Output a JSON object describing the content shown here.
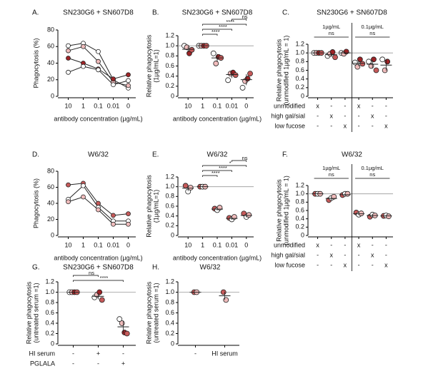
{
  "chart_data": [
    {
      "type": "line",
      "panel": "A.",
      "title": "SN230G6 + SN607D8",
      "ylabel": [
        "Phagocytosis (%)"
      ],
      "xlabel": "antibody concentration (µg/mL)",
      "categories": [
        "10",
        "1",
        "0.1",
        "0.01",
        "0"
      ],
      "ylim": [
        0,
        80
      ],
      "yticks": [
        0,
        20,
        40,
        60,
        80
      ],
      "series": [
        {
          "color": "#ffffff",
          "values": [
            61,
            64,
            54,
            20,
            10
          ]
        },
        {
          "color": "#f0bcbc",
          "values": [
            55,
            60,
            42,
            17,
            13
          ]
        },
        {
          "color": "#9e2326",
          "values": [
            46,
            40,
            33,
            21,
            26
          ]
        },
        {
          "color": "#ffffff",
          "values": [
            29,
            36,
            32,
            14,
            19
          ]
        }
      ]
    },
    {
      "type": "dot",
      "panel": "B.",
      "title": "SN230G6 + SN607D8",
      "ylabel": [
        "Relative phagocytosis",
        "(1µg/mL=1)"
      ],
      "xlabel": "antibody concentration (µg/mL)",
      "categories": [
        "10",
        "1",
        "0.1",
        "0.01",
        "0"
      ],
      "ylim": [
        0,
        1.2
      ],
      "yticks": [
        0,
        0.2,
        0.4,
        0.6,
        0.8,
        {
          "value": 1,
          "label": "1.0"
        },
        1.2
      ],
      "refline": 1,
      "donor_colors": [
        "#ffffff",
        "#f0bcbc",
        "#9e2326",
        "#c65a5a"
      ],
      "columns": [
        {
          "points": [
            1.0,
            0.97,
            0.85,
            0.92
          ],
          "mean": 0.93,
          "error": 0.06
        },
        {
          "points": [
            1,
            1,
            1,
            1
          ],
          "mean": 1,
          "error": 0
        },
        {
          "points": [
            0.85,
            0.65,
            0.78,
            0.76
          ],
          "mean": 0.76,
          "error": 0.08
        },
        {
          "points": [
            0.32,
            0.45,
            0.47,
            0.42
          ],
          "mean": 0.43,
          "error": 0.07
        },
        {
          "points": [
            0.17,
            0.3,
            0.35,
            0.45
          ],
          "mean": 0.33,
          "error": 0.11
        }
      ],
      "brackets": [
        {
          "label": "ns",
          "between": [
            3,
            4
          ]
        },
        {
          "label": "****",
          "between": [
            1,
            4
          ]
        },
        {
          "label": "****",
          "between": [
            1,
            3
          ]
        },
        {
          "label": "****",
          "between": [
            1,
            2
          ]
        }
      ]
    },
    {
      "type": "dot",
      "panel": "C.",
      "title": "SN230G6 + SN607D8",
      "ylabel": [
        "Relative phagocytosis",
        "(unmodified 1µg/mL = 1)"
      ],
      "categories": [
        null,
        null,
        null,
        null,
        null,
        null
      ],
      "ylim": [
        0,
        1.2
      ],
      "yticks": [
        0,
        0.2,
        0.4,
        0.6,
        0.8,
        {
          "value": 1,
          "label": "1.0"
        },
        1.2
      ],
      "refline": 1,
      "donor_colors": [
        "#ffffff",
        "#f0bcbc",
        "#9e2326",
        "#c65a5a"
      ],
      "columns": [
        {
          "points": [
            1,
            1,
            1,
            1
          ],
          "mean": 1,
          "error": 0
        },
        {
          "points": [
            0.93,
            0.98,
            1.02,
            0.9
          ],
          "mean": 0.96,
          "error": 0.05
        },
        {
          "points": [
            1.0,
            0.98,
            1.03,
            null
          ],
          "mean": 1,
          "error": 0.03
        },
        {
          "points": [
            0.78,
            0.68,
            0.85,
            0.75
          ],
          "mean": 0.76,
          "error": 0.07
        },
        {
          "points": [
            0.8,
            0.7,
            0.85,
            0.6
          ],
          "mean": 0.74,
          "error": 0.1
        },
        {
          "points": [
            0.85,
            0.6,
            0.8,
            null
          ],
          "mean": 0.72,
          "error": 0.13
        }
      ],
      "sections": [
        {
          "label": "1µg/mL",
          "annotation": "ns",
          "span": [
            0,
            2
          ]
        },
        {
          "label": "0.1µg/mL",
          "annotation": "ns",
          "span": [
            3,
            5
          ]
        }
      ],
      "conditions": [
        {
          "label": "unmodified",
          "marks": [
            "x",
            "-",
            "-",
            "x",
            "-",
            "-"
          ]
        },
        {
          "label": "high gal/sial",
          "marks": [
            "-",
            "x",
            "-",
            "-",
            "x",
            "-"
          ]
        },
        {
          "label": "low fucose",
          "marks": [
            "-",
            "-",
            "x",
            "-",
            "-",
            "x"
          ]
        }
      ]
    },
    {
      "type": "line",
      "panel": "D.",
      "title": "W6/32",
      "ylabel": [
        "Phagocytosis (%)"
      ],
      "xlabel": "antibody concentration (µg/mL)",
      "categories": [
        "10",
        "1",
        "0.1",
        "0.01",
        "0"
      ],
      "ylim": [
        0,
        80
      ],
      "yticks": [
        0,
        20,
        40,
        60,
        80
      ],
      "series": [
        {
          "color": "#c65a5a",
          "values": [
            63,
            65,
            40,
            25,
            27
          ]
        },
        {
          "color": "#ffffff",
          "values": [
            45,
            62,
            35,
            18,
            18
          ]
        },
        {
          "color": "#f0bcbc",
          "values": [
            42,
            48,
            32,
            14,
            14
          ]
        }
      ]
    },
    {
      "type": "dot",
      "panel": "E.",
      "title": "W6/32",
      "ylabel": [
        "Relative phagocytosis",
        "(1µg/mL=1)"
      ],
      "xlabel": "antibody concentration (µg/mL)",
      "categories": [
        "10",
        "1",
        "0.1",
        "0.01",
        "0"
      ],
      "ylim": [
        0,
        1.2
      ],
      "yticks": [
        0,
        0.2,
        0.4,
        0.6,
        0.8,
        {
          "value": 1,
          "label": "1.0"
        },
        1.2
      ],
      "refline": 1,
      "donor_colors": [
        "#c65a5a",
        "#ffffff",
        "#f0bcbc"
      ],
      "columns": [
        {
          "points": [
            1.02,
            0.9,
            0.98
          ],
          "mean": 0.97,
          "error": 0.06
        },
        {
          "points": [
            1,
            1,
            1
          ],
          "mean": 1,
          "error": 0
        },
        {
          "points": [
            0.55,
            0.52,
            0.57
          ],
          "mean": 0.54,
          "error": 0.03
        },
        {
          "points": [
            0.36,
            0.33,
            0.38
          ],
          "mean": 0.35,
          "error": 0.03
        },
        {
          "points": [
            0.45,
            0.38,
            0.42
          ],
          "mean": 0.41,
          "error": 0.04
        }
      ],
      "brackets": [
        {
          "label": "ns",
          "between": [
            3,
            4
          ]
        },
        {
          "label": "*",
          "between": [
            1,
            4
          ]
        },
        {
          "label": "****",
          "between": [
            1,
            3
          ]
        },
        {
          "label": "****",
          "between": [
            1,
            2
          ]
        }
      ]
    },
    {
      "type": "dot",
      "panel": "F.",
      "title": "W6/32",
      "ylabel": [
        "Relative phagocytosis",
        "(unmodified 1µg/mL = 1)"
      ],
      "categories": [
        null,
        null,
        null,
        null,
        null,
        null
      ],
      "ylim": [
        0,
        1.2
      ],
      "yticks": [
        0,
        0.2,
        0.4,
        0.6,
        0.8,
        {
          "value": 1,
          "label": "1.0"
        },
        1.2
      ],
      "refline": 1,
      "donor_colors": [
        "#c65a5a",
        "#ffffff",
        "#f0bcbc"
      ],
      "columns": [
        {
          "points": [
            1,
            1,
            1
          ],
          "mean": 1,
          "error": 0
        },
        {
          "points": [
            0.85,
            0.9,
            0.93
          ],
          "mean": 0.89,
          "error": 0.04
        },
        {
          "points": [
            0.97,
            1.0,
            1.0
          ],
          "mean": 0.98,
          "error": 0.02
        },
        {
          "points": [
            0.55,
            0.5,
            0.53
          ],
          "mean": 0.52,
          "error": 0.03
        },
        {
          "points": [
            0.45,
            0.5,
            0.48
          ],
          "mean": 0.48,
          "error": 0.03
        },
        {
          "points": [
            0.47,
            0.48,
            0.46
          ],
          "mean": 0.47,
          "error": 0.01
        }
      ],
      "sections": [
        {
          "label": "1µg/mL",
          "annotation": "ns",
          "span": [
            0,
            2
          ]
        },
        {
          "label": "0.1µg/mL",
          "annotation": "ns",
          "span": [
            3,
            5
          ]
        }
      ],
      "conditions": [
        {
          "label": "unmodified",
          "marks": [
            "x",
            "-",
            "-",
            "x",
            "-",
            "-"
          ]
        },
        {
          "label": "high gal/sial",
          "marks": [
            "-",
            "x",
            "-",
            "-",
            "x",
            "-"
          ]
        },
        {
          "label": "low fucose",
          "marks": [
            "-",
            "-",
            "x",
            "-",
            "-",
            "x"
          ]
        }
      ]
    },
    {
      "type": "dot",
      "panel": "G.",
      "title": "SN230G6 + SN607D8",
      "ylabel": [
        "Relative phagocytosis",
        "(untreated serum =1)"
      ],
      "categories": [
        null,
        null,
        null
      ],
      "ylim": [
        0,
        1.2
      ],
      "yticks": [
        0,
        0.2,
        0.4,
        0.6,
        0.8,
        {
          "value": 1,
          "label": "1.0"
        },
        1.2
      ],
      "refline": 1,
      "donor_colors": [
        "#ffffff",
        "#f0bcbc",
        "#9e2326",
        "#c65a5a"
      ],
      "columns": [
        {
          "points": [
            1,
            1,
            1,
            1
          ],
          "mean": 1,
          "error": 0
        },
        {
          "points": [
            0.9,
            0.95,
            1.0,
            0.85
          ],
          "mean": 0.92,
          "error": 0.06
        },
        {
          "points": [
            0.48,
            0.4,
            0.22,
            0.2
          ],
          "mean": 0.33,
          "error": 0.12
        }
      ],
      "brackets": [
        {
          "label": "ns",
          "between": [
            0,
            1
          ]
        },
        {
          "label": "****",
          "between": [
            0,
            2
          ]
        }
      ],
      "conditions": [
        {
          "label": "HI serum",
          "marks": [
            "-",
            "+",
            "-"
          ]
        },
        {
          "label": "PGLALA",
          "marks": [
            "-",
            "-",
            "+"
          ]
        }
      ]
    },
    {
      "type": "dot",
      "panel": "H.",
      "title": "W6/32",
      "ylabel": [
        "Relative phagocytosis",
        "(untreated serum =1)"
      ],
      "categories": [
        "-",
        "HI serum"
      ],
      "ylim": [
        0,
        1.2
      ],
      "yticks": [
        0,
        0.2,
        0.4,
        0.6,
        0.8,
        {
          "value": 1,
          "label": "1.0"
        },
        1.2
      ],
      "refline": 1,
      "donor_colors": [
        "#c65a5a",
        "#f0bcbc"
      ],
      "columns": [
        {
          "points": [
            1,
            1
          ],
          "mean": 1,
          "error": 0
        },
        {
          "points": [
            1.0,
            0.85
          ],
          "mean": 0.93,
          "error": 0.08
        }
      ]
    }
  ]
}
